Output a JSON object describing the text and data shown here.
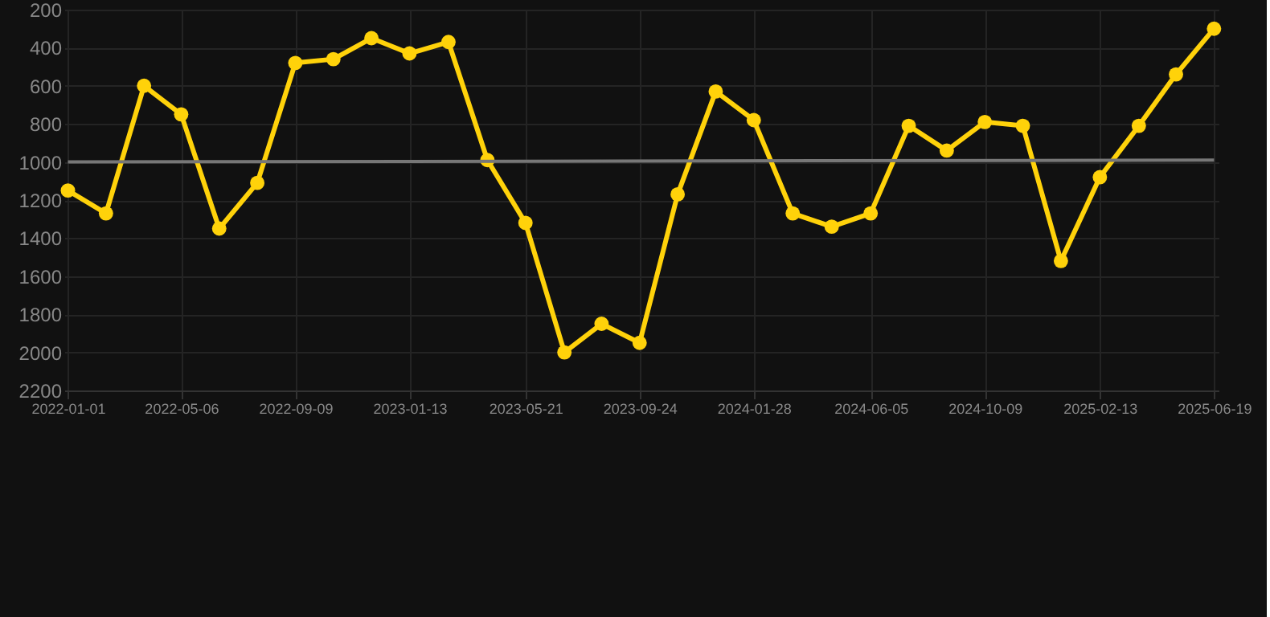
{
  "chart_data": {
    "type": "line",
    "x": [
      "2022-01-01",
      "2022-02-12",
      "2022-03-26",
      "2022-05-06",
      "2022-06-17",
      "2022-07-29",
      "2022-09-09",
      "2022-10-21",
      "2022-12-02",
      "2023-01-13",
      "2023-02-25",
      "2023-04-09",
      "2023-05-21",
      "2023-07-03",
      "2023-08-13",
      "2023-09-24",
      "2023-11-05",
      "2023-12-17",
      "2024-01-28",
      "2024-03-11",
      "2024-04-23",
      "2024-06-05",
      "2024-07-17",
      "2024-08-28",
      "2024-10-09",
      "2024-11-20",
      "2025-01-01",
      "2025-02-13",
      "2025-03-28",
      "2025-05-08",
      "2025-06-19"
    ],
    "series": [
      {
        "color": "#ffd20a",
        "marker": "circle",
        "values": [
          1150,
          1270,
          600,
          750,
          1350,
          1110,
          480,
          460,
          350,
          430,
          370,
          990,
          1320,
          2000,
          1850,
          1950,
          1170,
          630,
          780,
          1270,
          1340,
          1270,
          810,
          940,
          790,
          810,
          1520,
          1080,
          810,
          540,
          300
        ]
      },
      {
        "type": "line",
        "color": "#777777",
        "marker": "none",
        "x": [
          "2022-01-01",
          "2025-06-19"
        ],
        "values": [
          1000,
          990
        ]
      }
    ],
    "ylim": [
      2200,
      200
    ],
    "yticks": [
      200,
      400,
      600,
      800,
      1000,
      1200,
      1400,
      1600,
      1800,
      2000,
      2200
    ],
    "xlim": [
      "2021-12-28",
      "2025-06-24"
    ],
    "xticks": [
      "2022-01-01",
      "2022-05-06",
      "2022-09-09",
      "2023-01-13",
      "2023-05-21",
      "2023-09-24",
      "2024-01-28",
      "2024-06-05",
      "2024-10-09",
      "2025-02-13",
      "2025-06-19"
    ],
    "grid": true
  }
}
